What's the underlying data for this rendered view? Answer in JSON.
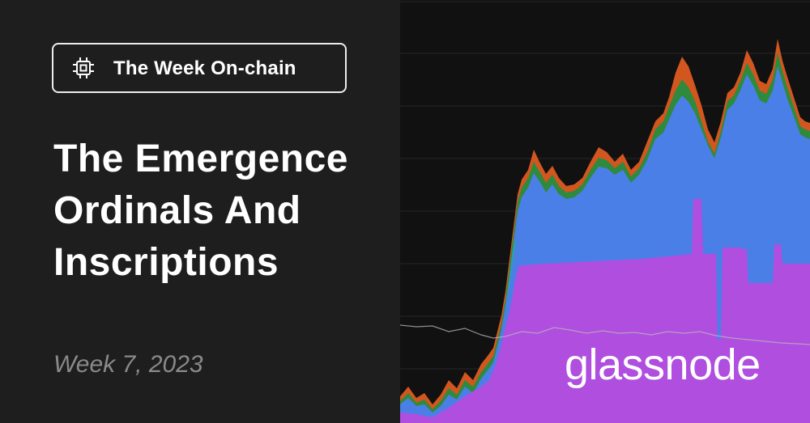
{
  "header": {
    "series_label": "The Week On-chain",
    "series_icon": "chip-icon"
  },
  "title": {
    "line1": "The Emergence",
    "line2": "Ordinals And",
    "line3": "Inscriptions"
  },
  "subtitle": "Week 7, 2023",
  "brand": "glassnode",
  "colors": {
    "left_bg": "#1e1e1e",
    "right_bg": "#111111",
    "purple": "#b04ee0",
    "blue": "#4a7fe8",
    "green": "#2e8a3c",
    "orange": "#d2561f",
    "teal": "#2aa3a0"
  }
}
